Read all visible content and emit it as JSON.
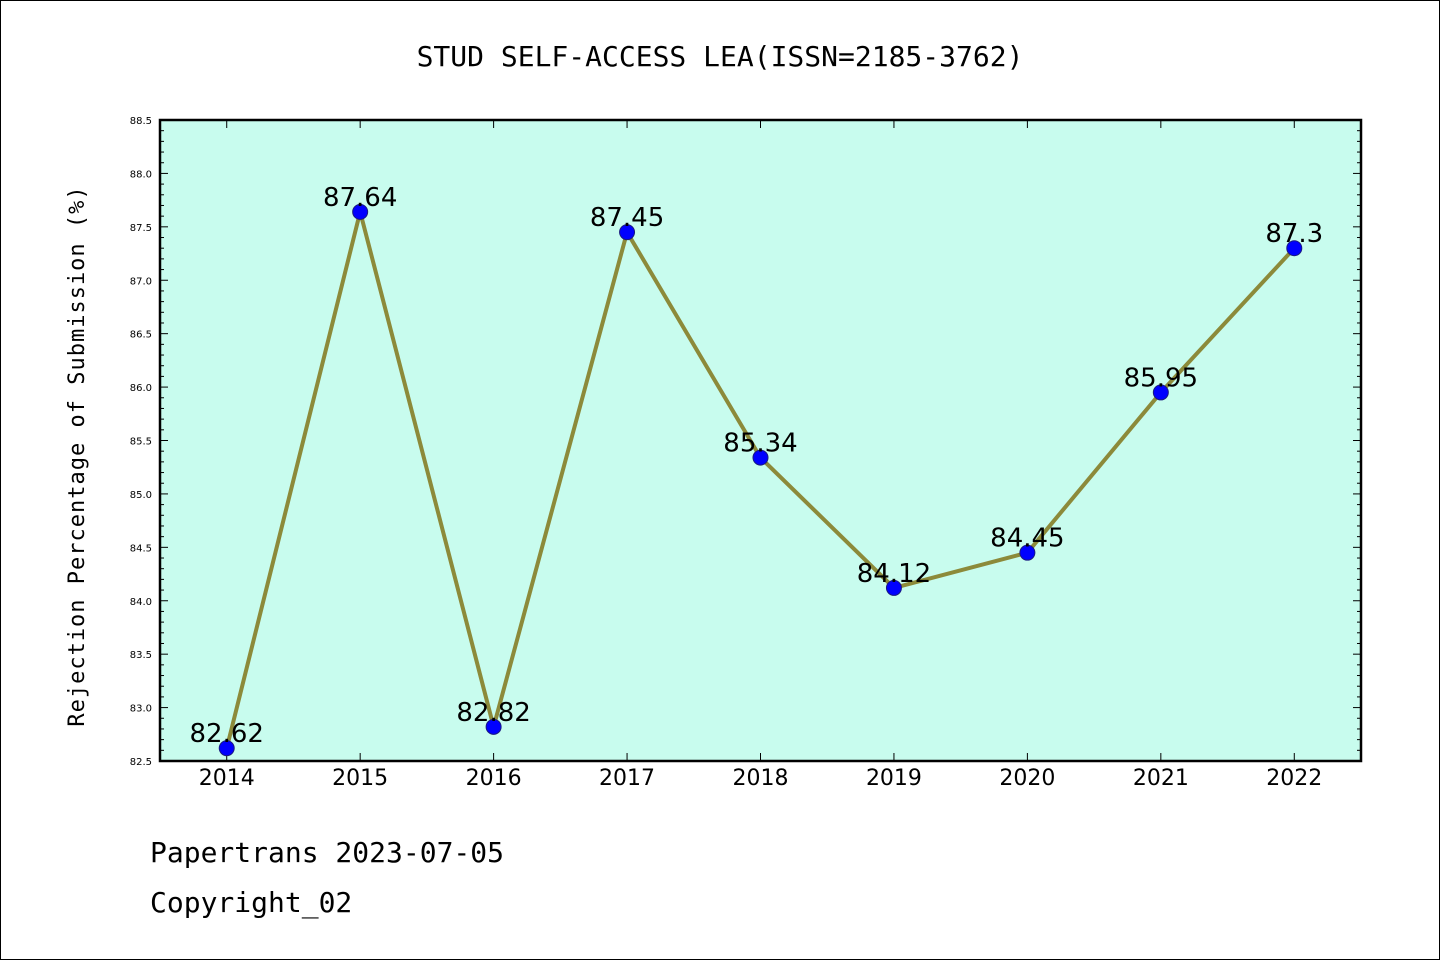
{
  "chart_data": {
    "type": "line",
    "title": "STUD SELF-ACCESS LEA(ISSN=2185-3762)",
    "xlabel": "",
    "ylabel": "Rejection Percentage of Submission (%)",
    "categories": [
      "2014",
      "2015",
      "2016",
      "2017",
      "2018",
      "2019",
      "2020",
      "2021",
      "2022"
    ],
    "series": [
      {
        "values": [
          82.62,
          87.64,
          82.82,
          87.45,
          85.34,
          84.12,
          84.45,
          85.95,
          87.3
        ],
        "labels": [
          "82.62",
          "87.64",
          "82.82",
          "87.45",
          "85.34",
          "84.12",
          "84.45",
          "85.95",
          "87.3"
        ]
      }
    ],
    "ylim": [
      82.5,
      88.5
    ],
    "yticks": [
      "82.5",
      "83.0",
      "83.5",
      "84.0",
      "84.5",
      "85.0",
      "85.5",
      "86.0",
      "86.5",
      "87.0",
      "87.5",
      "88.0",
      "88.5"
    ],
    "grid": false,
    "colors": {
      "plot_background": "#c8fcee",
      "line": "#8c8a3a",
      "marker": "#0000ff"
    }
  },
  "footer": {
    "line1": "Papertrans 2023-07-05",
    "line2": "Copyright_02"
  }
}
